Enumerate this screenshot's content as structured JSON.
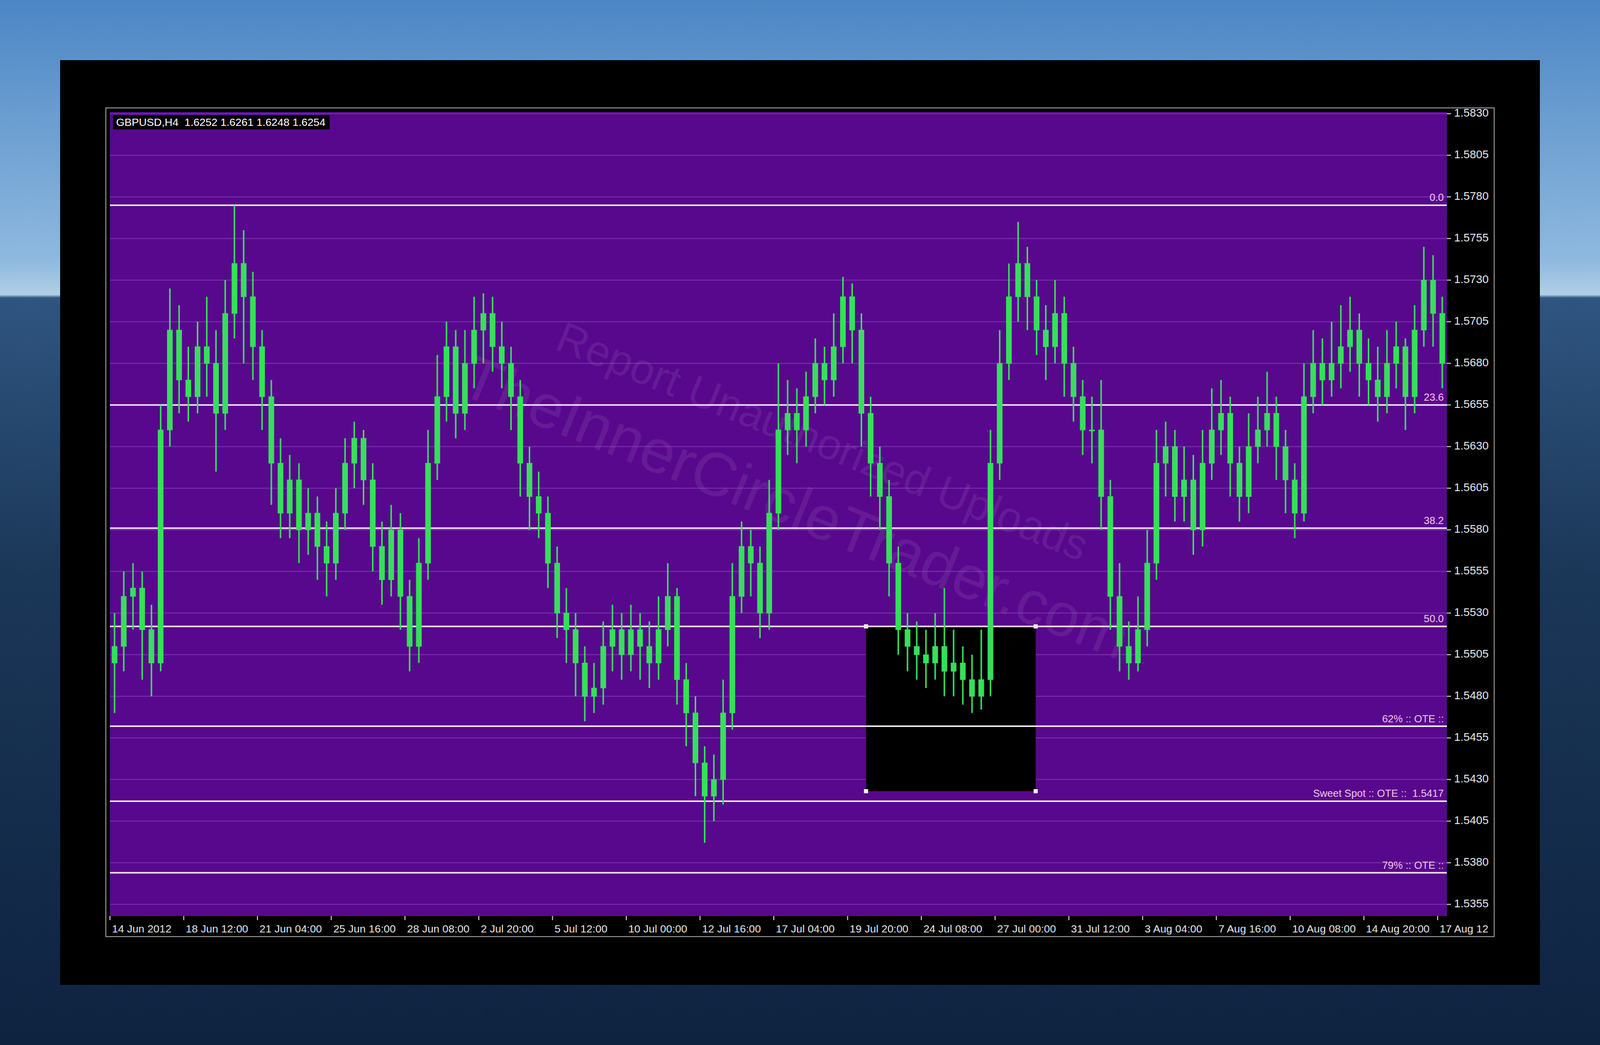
{
  "chart_data": {
    "type": "candlestick",
    "title": "GBPUSD,H4  1.6252 1.6261 1.6248 1.6254",
    "color": "#36e05a",
    "grid": true,
    "categories": [
      "14 Jun 2012",
      null,
      null,
      null,
      null,
      null,
      null,
      null,
      "18 Jun 12:00",
      null,
      null,
      null,
      null,
      null,
      null,
      null,
      "21 Jun 04:00",
      null,
      null,
      null,
      null,
      null,
      null,
      null,
      "25 Jun 16:00",
      null,
      null,
      null,
      null,
      null,
      null,
      null,
      "28 Jun 08:00",
      null,
      null,
      null,
      null,
      null,
      null,
      null,
      "2 Jul 20:00",
      null,
      null,
      null,
      null,
      null,
      null,
      null,
      "5 Jul 12:00",
      null,
      null,
      null,
      null,
      null,
      null,
      null,
      "10 Jul 00:00",
      null,
      null,
      null,
      null,
      null,
      null,
      null,
      "12 Jul 16:00",
      null,
      null,
      null,
      null,
      null,
      null,
      null,
      "17 Jul 04:00",
      null,
      null,
      null,
      null,
      null,
      null,
      null,
      "19 Jul 20:00",
      null,
      null,
      null,
      null,
      null,
      null,
      null,
      "24 Jul 08:00",
      null,
      null,
      null,
      null,
      null,
      null,
      null,
      "27 Jul 00:00",
      null,
      null,
      null,
      null,
      null,
      null,
      null,
      "31 Jul 12:00",
      null,
      null,
      null,
      null,
      null,
      null,
      null,
      "3 Aug 04:00",
      null,
      null,
      null,
      null,
      null,
      null,
      null,
      "7 Aug 16:00",
      null,
      null,
      null,
      null,
      null,
      null,
      null,
      "10 Aug 08:00",
      null,
      null,
      null,
      null,
      null,
      null,
      null,
      "14 Aug 20:00",
      null,
      null,
      null,
      null,
      null,
      null,
      null,
      "17 Aug 12"
    ],
    "open": [
      1.55,
      1.551,
      1.554,
      1.5545,
      1.552,
      1.55,
      1.564,
      1.57,
      1.567,
      1.566,
      1.569,
      1.568,
      1.565,
      1.571,
      1.574,
      1.572,
      1.569,
      1.566,
      1.562,
      1.559,
      1.561,
      1.558,
      1.559,
      1.557,
      1.556,
      1.559,
      1.562,
      1.5635,
      1.561,
      1.557,
      1.555,
      1.558,
      1.554,
      1.551,
      1.556,
      1.562,
      1.566,
      1.569,
      1.565,
      1.568,
      1.57,
      1.571,
      1.569,
      1.568,
      1.566,
      1.562,
      1.56,
      1.559,
      1.556,
      1.553,
      1.552,
      1.55,
      1.548,
      1.5485,
      1.551,
      1.552,
      1.5505,
      1.552,
      1.551,
      1.55,
      1.552,
      1.554,
      1.549,
      1.547,
      1.544,
      1.542,
      1.543,
      1.547,
      1.554,
      1.557,
      1.556,
      1.553,
      1.559,
      1.564,
      1.565,
      1.564,
      1.566,
      1.568,
      1.567,
      1.569,
      1.572,
      1.57,
      1.565,
      1.562,
      1.56,
      1.556,
      1.552,
      1.551,
      1.5505,
      1.55,
      1.551,
      1.5495,
      1.55,
      1.549,
      1.548,
      1.549,
      1.562,
      1.568,
      1.572,
      1.574,
      1.572,
      1.57,
      1.569,
      1.571,
      1.568,
      1.566,
      1.564,
      1.564,
      1.56,
      1.554,
      1.551,
      1.55,
      1.552,
      1.556,
      1.562,
      1.563,
      1.56,
      1.561,
      1.558,
      1.562,
      1.564,
      1.565,
      1.562,
      1.56,
      1.563,
      1.564,
      1.565,
      1.563,
      1.561,
      1.559,
      1.566,
      1.568,
      1.567,
      1.568,
      1.569,
      1.57,
      1.568,
      1.567,
      1.566,
      1.568,
      1.569,
      1.566,
      1.57,
      1.573,
      1.571
    ],
    "high": [
      1.553,
      1.5555,
      1.556,
      1.5555,
      1.5535,
      1.5655,
      1.5725,
      1.5715,
      1.569,
      1.5705,
      1.572,
      1.57,
      1.573,
      1.5775,
      1.576,
      1.5735,
      1.57,
      1.567,
      1.5635,
      1.5625,
      1.562,
      1.5605,
      1.56,
      1.5585,
      1.5605,
      1.5635,
      1.5645,
      1.564,
      1.562,
      1.5585,
      1.5595,
      1.559,
      1.555,
      1.5575,
      1.564,
      1.5685,
      1.5705,
      1.57,
      1.57,
      1.572,
      1.5722,
      1.572,
      1.5705,
      1.569,
      1.567,
      1.563,
      1.5615,
      1.56,
      1.557,
      1.5545,
      1.553,
      1.551,
      1.55,
      1.5525,
      1.5535,
      1.553,
      1.5535,
      1.553,
      1.5525,
      1.554,
      1.556,
      1.5545,
      1.55,
      1.548,
      1.545,
      1.5445,
      1.549,
      1.556,
      1.5585,
      1.558,
      1.557,
      1.561,
      1.568,
      1.567,
      1.5665,
      1.5675,
      1.5695,
      1.569,
      1.571,
      1.5732,
      1.5728,
      1.571,
      1.566,
      1.563,
      1.561,
      1.557,
      1.553,
      1.5525,
      1.552,
      1.553,
      1.5545,
      1.552,
      1.551,
      1.5505,
      1.552,
      1.564,
      1.57,
      1.574,
      1.5765,
      1.575,
      1.573,
      1.5715,
      1.573,
      1.572,
      1.569,
      1.567,
      1.566,
      1.567,
      1.561,
      1.556,
      1.5525,
      1.554,
      1.558,
      1.564,
      1.5645,
      1.564,
      1.563,
      1.5625,
      1.564,
      1.5665,
      1.567,
      1.566,
      1.563,
      1.565,
      1.566,
      1.5675,
      1.566,
      1.564,
      1.562,
      1.568,
      1.57,
      1.5695,
      1.5705,
      1.5715,
      1.572,
      1.571,
      1.5695,
      1.569,
      1.57,
      1.5705,
      1.5695,
      1.5715,
      1.575,
      1.5745,
      1.572
    ],
    "low": [
      1.547,
      1.5495,
      1.552,
      1.549,
      1.548,
      1.5495,
      1.563,
      1.565,
      1.5645,
      1.565,
      1.566,
      1.5615,
      1.564,
      1.5695,
      1.568,
      1.567,
      1.564,
      1.5595,
      1.5575,
      1.5575,
      1.556,
      1.5565,
      1.555,
      1.554,
      1.555,
      1.558,
      1.5605,
      1.5595,
      1.5555,
      1.5535,
      1.554,
      1.552,
      1.5495,
      1.55,
      1.555,
      1.561,
      1.5645,
      1.5635,
      1.564,
      1.5665,
      1.568,
      1.5675,
      1.5665,
      1.564,
      1.56,
      1.558,
      1.5575,
      1.5545,
      1.5515,
      1.55,
      1.548,
      1.5465,
      1.547,
      1.5475,
      1.5495,
      1.549,
      1.5495,
      1.549,
      1.5485,
      1.549,
      1.551,
      1.5475,
      1.545,
      1.542,
      1.5392,
      1.5405,
      1.5415,
      1.546,
      1.553,
      1.554,
      1.5515,
      1.552,
      1.558,
      1.5625,
      1.562,
      1.563,
      1.565,
      1.5655,
      1.566,
      1.568,
      1.568,
      1.563,
      1.56,
      1.558,
      1.554,
      1.5505,
      1.5495,
      1.549,
      1.5485,
      1.549,
      1.548,
      1.548,
      1.5475,
      1.547,
      1.5472,
      1.548,
      1.561,
      1.567,
      1.5705,
      1.57,
      1.5685,
      1.567,
      1.568,
      1.566,
      1.5645,
      1.5625,
      1.562,
      1.558,
      1.552,
      1.5495,
      1.549,
      1.5495,
      1.551,
      1.555,
      1.56,
      1.5585,
      1.5585,
      1.5565,
      1.557,
      1.561,
      1.5625,
      1.56,
      1.5585,
      1.559,
      1.562,
      1.563,
      1.561,
      1.559,
      1.5575,
      1.5585,
      1.565,
      1.5655,
      1.566,
      1.5665,
      1.5675,
      1.566,
      1.5655,
      1.5645,
      1.565,
      1.5665,
      1.564,
      1.565,
      1.569,
      1.569,
      1.5665
    ],
    "close": [
      1.551,
      1.554,
      1.5545,
      1.552,
      1.55,
      1.564,
      1.57,
      1.567,
      1.566,
      1.569,
      1.568,
      1.565,
      1.571,
      1.574,
      1.572,
      1.569,
      1.566,
      1.562,
      1.559,
      1.561,
      1.558,
      1.559,
      1.557,
      1.556,
      1.559,
      1.562,
      1.5635,
      1.561,
      1.557,
      1.555,
      1.558,
      1.554,
      1.551,
      1.556,
      1.562,
      1.566,
      1.569,
      1.565,
      1.568,
      1.57,
      1.571,
      1.569,
      1.568,
      1.566,
      1.562,
      1.56,
      1.559,
      1.556,
      1.553,
      1.552,
      1.55,
      1.548,
      1.5485,
      1.551,
      1.552,
      1.5505,
      1.552,
      1.551,
      1.55,
      1.552,
      1.554,
      1.549,
      1.547,
      1.544,
      1.542,
      1.543,
      1.547,
      1.554,
      1.557,
      1.556,
      1.553,
      1.559,
      1.564,
      1.565,
      1.564,
      1.566,
      1.568,
      1.567,
      1.569,
      1.572,
      1.57,
      1.565,
      1.562,
      1.56,
      1.556,
      1.552,
      1.551,
      1.5505,
      1.55,
      1.551,
      1.5495,
      1.55,
      1.549,
      1.548,
      1.549,
      1.562,
      1.568,
      1.572,
      1.574,
      1.572,
      1.57,
      1.569,
      1.571,
      1.568,
      1.566,
      1.564,
      1.564,
      1.56,
      1.554,
      1.551,
      1.55,
      1.552,
      1.556,
      1.562,
      1.563,
      1.56,
      1.561,
      1.558,
      1.562,
      1.564,
      1.565,
      1.562,
      1.56,
      1.563,
      1.564,
      1.565,
      1.563,
      1.561,
      1.559,
      1.566,
      1.568,
      1.567,
      1.568,
      1.569,
      1.57,
      1.568,
      1.567,
      1.566,
      1.568,
      1.569,
      1.566,
      1.57,
      1.573,
      1.571,
      1.568
    ],
    "ylim": [
      1.5348,
      1.5831
    ],
    "yticks": [
      1.5355,
      {
        "value": 1.538,
        "label": "1.5380"
      },
      1.5405,
      {
        "value": 1.543,
        "label": "1.5430"
      },
      1.5455,
      {
        "value": 1.548,
        "label": "1.5480"
      },
      1.5505,
      {
        "value": 1.553,
        "label": "1.5530"
      },
      1.5555,
      {
        "value": 1.558,
        "label": "1.5580"
      },
      1.5605,
      {
        "value": 1.563,
        "label": "1.5630"
      },
      1.5655,
      {
        "value": 1.568,
        "label": "1.5680"
      },
      1.5705,
      {
        "value": 1.573,
        "label": "1.5730"
      },
      1.5755,
      {
        "value": 1.578,
        "label": "1.5780"
      },
      1.5805,
      {
        "value": 1.583,
        "label": "1.5830"
      }
    ],
    "levels": [
      {
        "value": 1.5775,
        "label": "0.0"
      },
      {
        "value": 1.5655,
        "label": "23.6"
      },
      {
        "value": 1.5581,
        "label": "38.2"
      },
      {
        "value": 1.5522,
        "label": "50.0"
      },
      {
        "value": 1.5462,
        "label": "62% :: OTE ::"
      },
      {
        "value": 1.5417,
        "label": "Sweet Spot :: OTE ::  1.5417"
      },
      {
        "value": 1.5374,
        "label": "79% :: OTE ::"
      }
    ],
    "zone": {
      "from": 82,
      "to": 100.4,
      "low": 1.5423,
      "high": 1.5522
    },
    "watermark": [
      "Report Unauthorized Uploads",
      "TheInnerCircleTrader.com"
    ]
  }
}
